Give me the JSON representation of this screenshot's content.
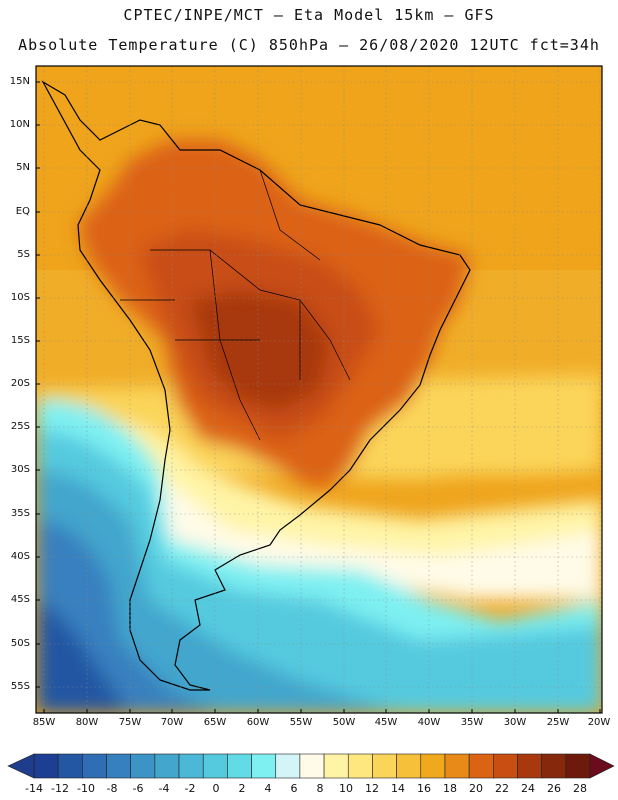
{
  "header": {
    "line1": "CPTEC/INPE/MCT –  Eta Model 15km – GFS",
    "line2": "Absolute Temperature (C) 850hPa – 26/08/2020 12UTC fct=34h"
  },
  "map": {
    "lat_labels": [
      "15N",
      "10N",
      "5N",
      "EQ",
      "5S",
      "10S",
      "15S",
      "20S",
      "25S",
      "30S",
      "35S",
      "40S",
      "45S",
      "50S",
      "55S"
    ],
    "lon_labels": [
      "85W",
      "80W",
      "75W",
      "70W",
      "65W",
      "60W",
      "55W",
      "50W",
      "45W",
      "40W",
      "35W",
      "30W",
      "25W",
      "20W"
    ]
  },
  "legend": {
    "labels": [
      "-14",
      "-12",
      "-10",
      "-8",
      "-6",
      "-4",
      "-2",
      "0",
      "2",
      "4",
      "6",
      "8",
      "10",
      "12",
      "14",
      "16",
      "18",
      "20",
      "22",
      "24",
      "26",
      "28"
    ],
    "colors": [
      "#1c3f93",
      "#2457a3",
      "#2f6db5",
      "#3780bf",
      "#3c93c6",
      "#42a6cd",
      "#4ab8d6",
      "#55cadf",
      "#63dbe6",
      "#7ef0f2",
      "#d4f5f8",
      "#fffbe8",
      "#fff4a6",
      "#ffe780",
      "#fbd55a",
      "#f7c03a",
      "#f0a81c",
      "#e88a17",
      "#dc6214",
      "#c84e12",
      "#a8390f",
      "#86280c",
      "#6e1a0a"
    ],
    "low_color": "#1f3d8c",
    "high_color": "#6a0c1c"
  }
}
